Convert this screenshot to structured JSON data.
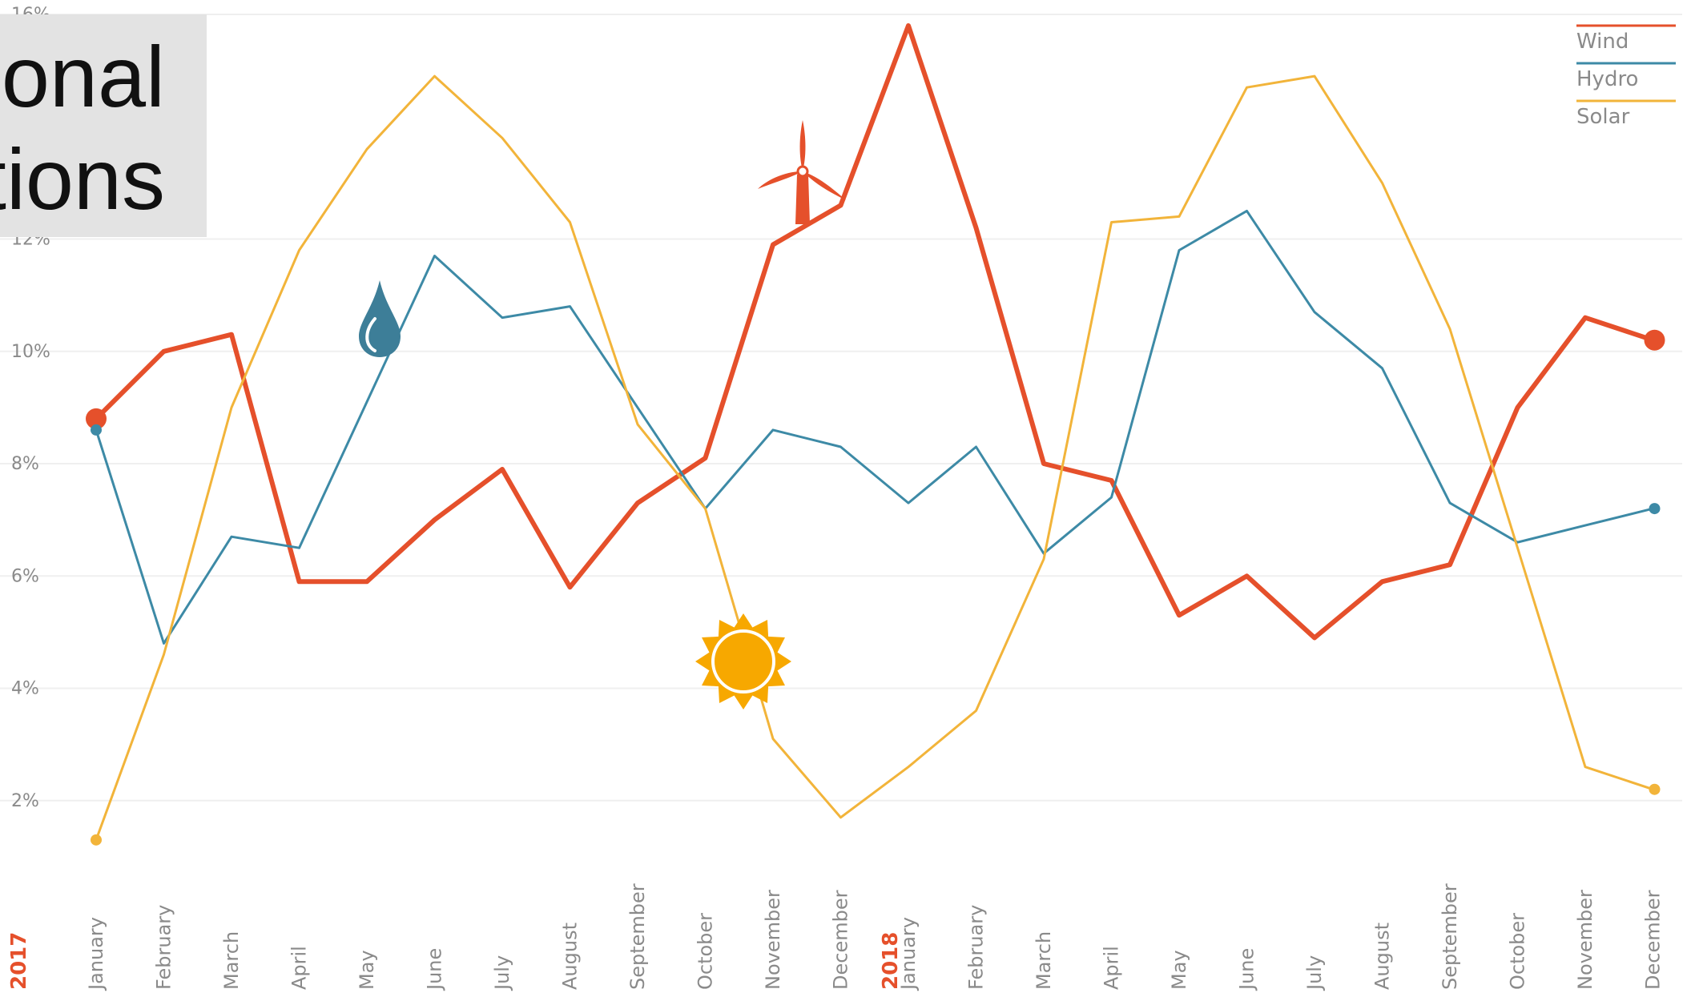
{
  "title": {
    "line1": "onal",
    "line2": "tions"
  },
  "colors": {
    "wind": "#e5502b",
    "hydro": "#3d8aa6",
    "solar": "#f2b43a",
    "year": "#e5502b",
    "axis_text": "#8a8a8a",
    "grid": "#efefef",
    "sun": "#f7a800",
    "drop": "#3d7e98"
  },
  "chart_data": {
    "type": "line",
    "ylim": [
      0,
      16
    ],
    "y_ticks": [
      {
        "value": 2,
        "label": "2%"
      },
      {
        "value": 4,
        "label": "4%"
      },
      {
        "value": 6,
        "label": "6%"
      },
      {
        "value": 8,
        "label": "8%"
      },
      {
        "value": 10,
        "label": "10%"
      },
      {
        "value": 12,
        "label": "12%"
      },
      {
        "value": 16,
        "label": "16%"
      }
    ],
    "years": [
      "2017",
      "2018"
    ],
    "categories": [
      "January",
      "February",
      "March",
      "April",
      "May",
      "June",
      "July",
      "August",
      "September",
      "October",
      "November",
      "December",
      "January",
      "February",
      "March",
      "April",
      "May",
      "June",
      "July",
      "August",
      "September",
      "October",
      "November",
      "December"
    ],
    "series": [
      {
        "name": "Wind",
        "values": [
          8.8,
          10.0,
          10.3,
          5.9,
          5.9,
          7.0,
          7.9,
          5.8,
          7.3,
          8.1,
          11.9,
          12.6,
          15.8,
          12.2,
          8.0,
          7.7,
          5.3,
          6.0,
          4.9,
          5.9,
          6.2,
          9.0,
          10.6,
          10.2
        ],
        "color": "#e5502b",
        "width": "thick"
      },
      {
        "name": "Hydro",
        "values": [
          8.6,
          4.8,
          6.7,
          6.5,
          9.1,
          11.7,
          10.6,
          10.8,
          9.0,
          7.2,
          8.6,
          8.3,
          7.3,
          8.3,
          6.4,
          7.4,
          11.8,
          12.5,
          10.7,
          9.7,
          7.3,
          6.6,
          6.9,
          7.2
        ],
        "color": "#3d8aa6",
        "width": "thin"
      },
      {
        "name": "Solar",
        "values": [
          1.3,
          4.6,
          9.0,
          11.8,
          13.6,
          14.9,
          13.8,
          12.3,
          8.7,
          7.2,
          3.1,
          1.7,
          2.6,
          3.6,
          6.3,
          12.3,
          12.4,
          14.7,
          14.9,
          13.0,
          10.4,
          6.5,
          2.6,
          2.2
        ],
        "color": "#f2b43a",
        "width": "thin"
      }
    ],
    "legend": [
      {
        "label": "Wind",
        "color": "#e5502b"
      },
      {
        "label": "Hydro",
        "color": "#3d8aa6"
      },
      {
        "label": "Solar",
        "color": "#f2b43a"
      }
    ],
    "legend_position": "top-right",
    "grid": true,
    "icons": [
      {
        "name": "wind-turbine-icon",
        "series": "Wind"
      },
      {
        "name": "water-drop-icon",
        "series": "Hydro"
      },
      {
        "name": "sun-icon",
        "series": "Solar"
      }
    ]
  }
}
